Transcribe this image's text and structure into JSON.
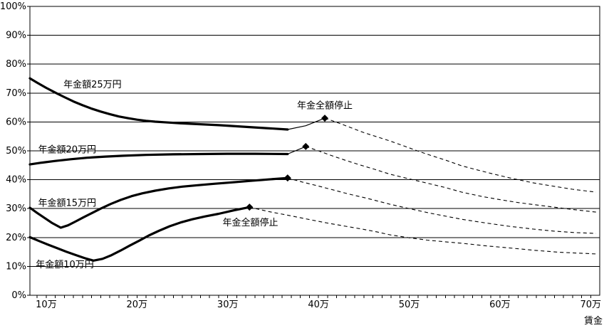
{
  "chart_data": {
    "type": "line",
    "title": "",
    "xlabel": "賃金",
    "ylabel": "",
    "xlim": [
      8.2,
      71.0
    ],
    "ylim": [
      0,
      100
    ],
    "grid": "horizontal",
    "legend": "none",
    "colors": {
      "line": "#000000",
      "background": "#ffffff"
    },
    "x_ticks": [
      {
        "value": 10,
        "label": "10万"
      },
      {
        "value": 20,
        "label": "20万"
      },
      {
        "value": 30,
        "label": "30万"
      },
      {
        "value": 40,
        "label": "40万"
      },
      {
        "value": 50,
        "label": "50万"
      },
      {
        "value": 60,
        "label": "60万"
      },
      {
        "value": 70,
        "label": "70万"
      }
    ],
    "x_minor_ticks": {
      "start": 9,
      "end": 70,
      "step": 1
    },
    "y_ticks": [
      {
        "value": 100,
        "label": "100%"
      },
      {
        "value": 90,
        "label": "90%"
      },
      {
        "value": 80,
        "label": "80%"
      },
      {
        "value": 70,
        "label": "70%"
      },
      {
        "value": 60,
        "label": "60%"
      },
      {
        "value": 50,
        "label": "50%"
      },
      {
        "value": 40,
        "label": "40%"
      },
      {
        "value": 30,
        "label": "30%"
      },
      {
        "value": 20,
        "label": "20%"
      },
      {
        "value": 10,
        "label": "10%"
      },
      {
        "value": 0,
        "label": "0%"
      }
    ],
    "series": [
      {
        "id": "pension-250k",
        "label": "年金額25万円",
        "label_at": [
          15.1,
          72.9
        ],
        "solid": [
          [
            8.2,
            75.1
          ],
          [
            9,
            73.6
          ],
          [
            10,
            71.8
          ],
          [
            11.1,
            70.0
          ],
          [
            12,
            68.6
          ],
          [
            13,
            67.1
          ],
          [
            14,
            65.8
          ],
          [
            15,
            64.6
          ],
          [
            16,
            63.6
          ],
          [
            17,
            62.7
          ],
          [
            18,
            61.9
          ],
          [
            19,
            61.3
          ],
          [
            20,
            60.8
          ],
          [
            21,
            60.4
          ],
          [
            22,
            60.1
          ],
          [
            23,
            59.9
          ],
          [
            25,
            59.5
          ],
          [
            27,
            59.2
          ],
          [
            29,
            58.9
          ],
          [
            31,
            58.5
          ],
          [
            33,
            58.1
          ],
          [
            35,
            57.7
          ],
          [
            36.6,
            57.4
          ]
        ],
        "thin": [
          [
            36.6,
            57.4
          ],
          [
            38.6,
            58.7
          ],
          [
            40.7,
            61.3
          ]
        ],
        "stop_marker": [
          40.7,
          61.3
        ],
        "dashed": [
          [
            40.7,
            61.3
          ],
          [
            42,
            59.9
          ],
          [
            43.5,
            58.1
          ],
          [
            45,
            56.3
          ],
          [
            46.5,
            54.8
          ],
          [
            47.9,
            53.4
          ],
          [
            49.5,
            51.6
          ],
          [
            50.9,
            50.0
          ],
          [
            52.5,
            48.3
          ],
          [
            54,
            46.8
          ],
          [
            55.8,
            44.8
          ],
          [
            57.5,
            43.4
          ],
          [
            59,
            42.2
          ],
          [
            61,
            40.7
          ],
          [
            63.7,
            38.9
          ],
          [
            66,
            37.7
          ],
          [
            68,
            36.7
          ],
          [
            70.6,
            35.7
          ]
        ]
      },
      {
        "id": "pension-200k",
        "label": "年金額20万円",
        "label_at": [
          12.3,
          50.4
        ],
        "solid": [
          [
            8.2,
            45.3
          ],
          [
            9.5,
            45.9
          ],
          [
            11,
            46.5
          ],
          [
            12.7,
            47.1
          ],
          [
            14.5,
            47.6
          ],
          [
            16.5,
            48.0
          ],
          [
            18.5,
            48.3
          ],
          [
            21,
            48.6
          ],
          [
            24,
            48.8
          ],
          [
            27,
            48.9
          ],
          [
            30,
            49.0
          ],
          [
            33,
            49.0
          ],
          [
            36.6,
            48.9
          ]
        ],
        "thin": [
          [
            36.6,
            48.9
          ],
          [
            38.6,
            51.5
          ]
        ],
        "stop_marker": [
          38.6,
          51.5
        ],
        "dashed": [
          [
            38.6,
            51.5
          ],
          [
            40,
            50.0
          ],
          [
            41.5,
            48.3
          ],
          [
            43,
            46.7
          ],
          [
            44.5,
            45.2
          ],
          [
            46.2,
            43.6
          ],
          [
            47.9,
            41.9
          ],
          [
            50,
            40.3
          ],
          [
            52,
            38.8
          ],
          [
            54,
            37.3
          ],
          [
            55.8,
            35.7
          ],
          [
            58,
            34.2
          ],
          [
            60,
            33.1
          ],
          [
            62,
            32.1
          ],
          [
            63.7,
            31.4
          ],
          [
            66,
            30.5
          ],
          [
            68,
            29.7
          ],
          [
            70.6,
            28.8
          ]
        ]
      },
      {
        "id": "pension-150k",
        "label": "年金額15万円",
        "label_at": [
          12.3,
          31.9
        ],
        "solid": [
          [
            8.2,
            30.3
          ],
          [
            9,
            28.5
          ],
          [
            9.8,
            26.8
          ],
          [
            10.6,
            25.1
          ],
          [
            11.6,
            23.4
          ],
          [
            12.4,
            24.2
          ],
          [
            13.2,
            25.5
          ],
          [
            14.1,
            27.0
          ],
          [
            15,
            28.4
          ],
          [
            16,
            30.0
          ],
          [
            17.1,
            31.6
          ],
          [
            18.2,
            33.0
          ],
          [
            19.4,
            34.3
          ],
          [
            20.6,
            35.3
          ],
          [
            22,
            36.2
          ],
          [
            23.5,
            37.0
          ],
          [
            25,
            37.6
          ],
          [
            26.7,
            38.1
          ],
          [
            28.5,
            38.6
          ],
          [
            30.5,
            39.1
          ],
          [
            32.5,
            39.6
          ],
          [
            34.5,
            40.1
          ],
          [
            36.6,
            40.6
          ]
        ],
        "thin": null,
        "stop_marker": [
          36.6,
          40.6
        ],
        "dashed": [
          [
            36.6,
            40.6
          ],
          [
            38.2,
            39.2
          ],
          [
            40,
            37.8
          ],
          [
            41.7,
            36.4
          ],
          [
            43.4,
            35.0
          ],
          [
            45.2,
            33.7
          ],
          [
            47.9,
            31.5
          ],
          [
            50,
            30.0
          ],
          [
            52.5,
            28.3
          ],
          [
            55.8,
            26.3
          ],
          [
            58.5,
            25.0
          ],
          [
            61,
            23.9
          ],
          [
            63.7,
            22.9
          ],
          [
            66,
            22.2
          ],
          [
            68.3,
            21.7
          ],
          [
            70.6,
            21.4
          ]
        ]
      },
      {
        "id": "pension-100k",
        "label": "年金額10万円",
        "label_at": [
          12.05,
          10.6
        ],
        "solid": [
          [
            8.2,
            20.1
          ],
          [
            9.2,
            18.8
          ],
          [
            10.2,
            17.5
          ],
          [
            11.2,
            16.3
          ],
          [
            12.2,
            15.1
          ],
          [
            13.2,
            14.0
          ],
          [
            14.2,
            12.9
          ],
          [
            15.2,
            12.0
          ],
          [
            16.2,
            12.6
          ],
          [
            17.2,
            13.9
          ],
          [
            18.2,
            15.5
          ],
          [
            19.2,
            17.2
          ],
          [
            20.3,
            19.0
          ],
          [
            21.3,
            20.7
          ],
          [
            22.4,
            22.3
          ],
          [
            23.6,
            23.9
          ],
          [
            24.8,
            25.2
          ],
          [
            26.1,
            26.3
          ],
          [
            27.5,
            27.3
          ],
          [
            29,
            28.2
          ],
          [
            30.7,
            29.4
          ],
          [
            32.4,
            30.5
          ]
        ],
        "thin": null,
        "stop_marker": [
          32.4,
          30.5
        ],
        "dashed": [
          [
            32.4,
            30.5
          ],
          [
            34.5,
            29.0
          ],
          [
            36.8,
            27.6
          ],
          [
            39,
            26.2
          ],
          [
            41,
            25.0
          ],
          [
            43,
            23.9
          ],
          [
            45,
            22.8
          ],
          [
            46.5,
            21.9
          ],
          [
            47.9,
            20.9
          ],
          [
            50,
            19.9
          ],
          [
            52,
            19.1
          ],
          [
            54,
            18.5
          ],
          [
            55.8,
            18.0
          ],
          [
            58.5,
            17.1
          ],
          [
            61,
            16.4
          ],
          [
            63.7,
            15.6
          ],
          [
            66.5,
            14.9
          ],
          [
            68.5,
            14.6
          ],
          [
            70.6,
            14.3
          ]
        ]
      }
    ],
    "annotations": [
      {
        "id": "full-stop-top",
        "text": "年金全額停止",
        "at": [
          40.7,
          65.6
        ]
      },
      {
        "id": "full-stop-bottom",
        "text": "年金全額停止",
        "at": [
          32.5,
          25.1
        ]
      }
    ]
  }
}
